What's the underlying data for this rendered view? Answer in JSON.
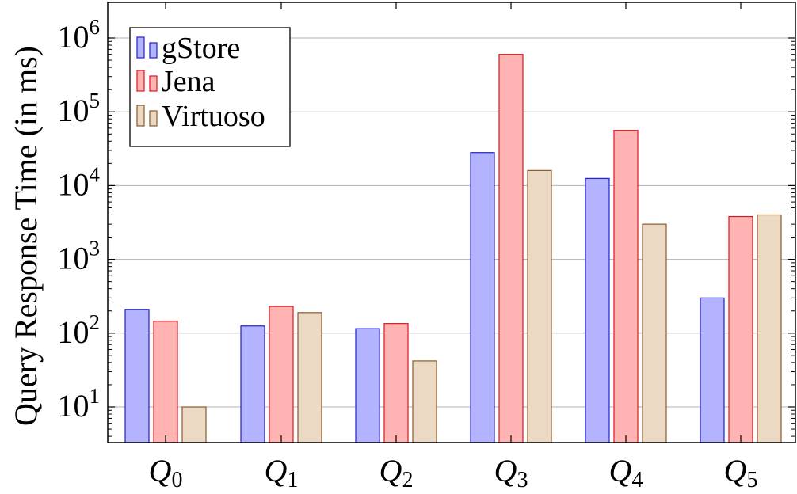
{
  "chart_data": {
    "type": "bar",
    "ylabel": "Query Response Time (in ms)",
    "yscale": "log",
    "ylim": [
      3.2,
      1600000
    ],
    "y_ticks": [
      {
        "base": "10",
        "exp": "1",
        "value": 10
      },
      {
        "base": "10",
        "exp": "2",
        "value": 100
      },
      {
        "base": "10",
        "exp": "3",
        "value": 1000
      },
      {
        "base": "10",
        "exp": "4",
        "value": 10000
      },
      {
        "base": "10",
        "exp": "5",
        "value": 100000
      },
      {
        "base": "10",
        "exp": "6",
        "value": 1000000
      }
    ],
    "categories": [
      {
        "main": "Q",
        "sub": "0"
      },
      {
        "main": "Q",
        "sub": "1"
      },
      {
        "main": "Q",
        "sub": "2"
      },
      {
        "main": "Q",
        "sub": "3"
      },
      {
        "main": "Q",
        "sub": "4"
      },
      {
        "main": "Q",
        "sub": "5"
      }
    ],
    "series": [
      {
        "name": "gStore",
        "fill": "#b3b3ff",
        "stroke": "#1f1fcc",
        "values": [
          210,
          125,
          115,
          28000,
          12500,
          300
        ]
      },
      {
        "name": "Jena",
        "fill": "#ffb3b3",
        "stroke": "#e0141e",
        "values": [
          145,
          230,
          135,
          600000,
          56000,
          3800
        ]
      },
      {
        "name": "Virtuoso",
        "fill": "#ebd9c4",
        "stroke": "#8b5a2b",
        "values": [
          10,
          190,
          42,
          16000,
          3000,
          4000
        ]
      }
    ],
    "grid": "major horizontal",
    "legend": "top-left"
  }
}
